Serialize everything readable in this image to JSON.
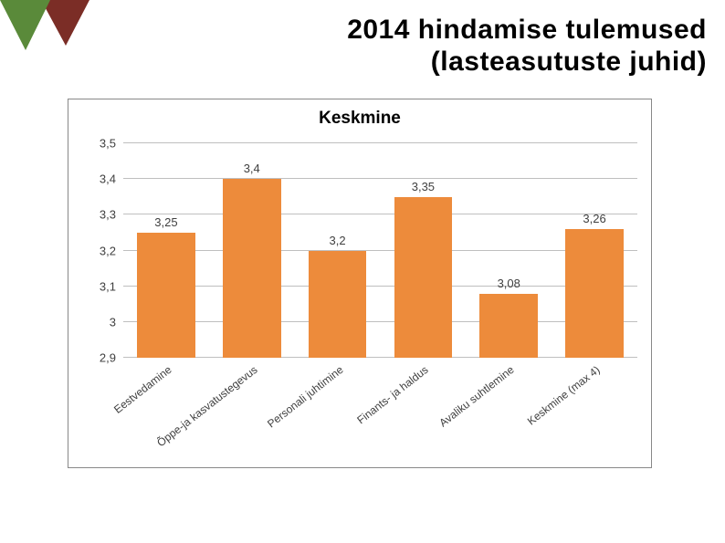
{
  "slide": {
    "title_line1": "2014 hindamise tulemused",
    "title_line2": "(lasteasutuste juhid)",
    "title_fontsize": 30,
    "title_color": "#000000"
  },
  "decoration": {
    "triangle1_color": "#7b2d26",
    "triangle2_color": "#5a8a3a"
  },
  "chart": {
    "type": "bar",
    "title": "Keskmine",
    "title_fontsize": 19,
    "title_color": "#000000",
    "axis_fontsize": 13,
    "value_label_fontsize": 13,
    "xlabel_fontsize": 12,
    "background_color": "#ffffff",
    "grid_color": "#bfbfbf",
    "border_color": "#888888",
    "ylim": [
      2.9,
      3.5
    ],
    "ytick_step": 0.1,
    "ytick_labels": [
      "2,9",
      "3",
      "3,1",
      "3,2",
      "3,3",
      "3,4",
      "3,5"
    ],
    "categories": [
      "Eestvedamine",
      "Õppe-ja kasvatustegevus",
      "Personali juhtimine",
      "Finants- ja haldus",
      "Avaliku suhtlemine",
      "Keskmine (max 4)"
    ],
    "values": [
      3.25,
      3.4,
      3.2,
      3.35,
      3.08,
      3.26
    ],
    "value_labels": [
      "3,25",
      "3,4",
      "3,2",
      "3,35",
      "3,08",
      "3,26"
    ],
    "bar_color": "#ed8b3b",
    "bar_width": 0.68,
    "text_color": "#404040"
  }
}
